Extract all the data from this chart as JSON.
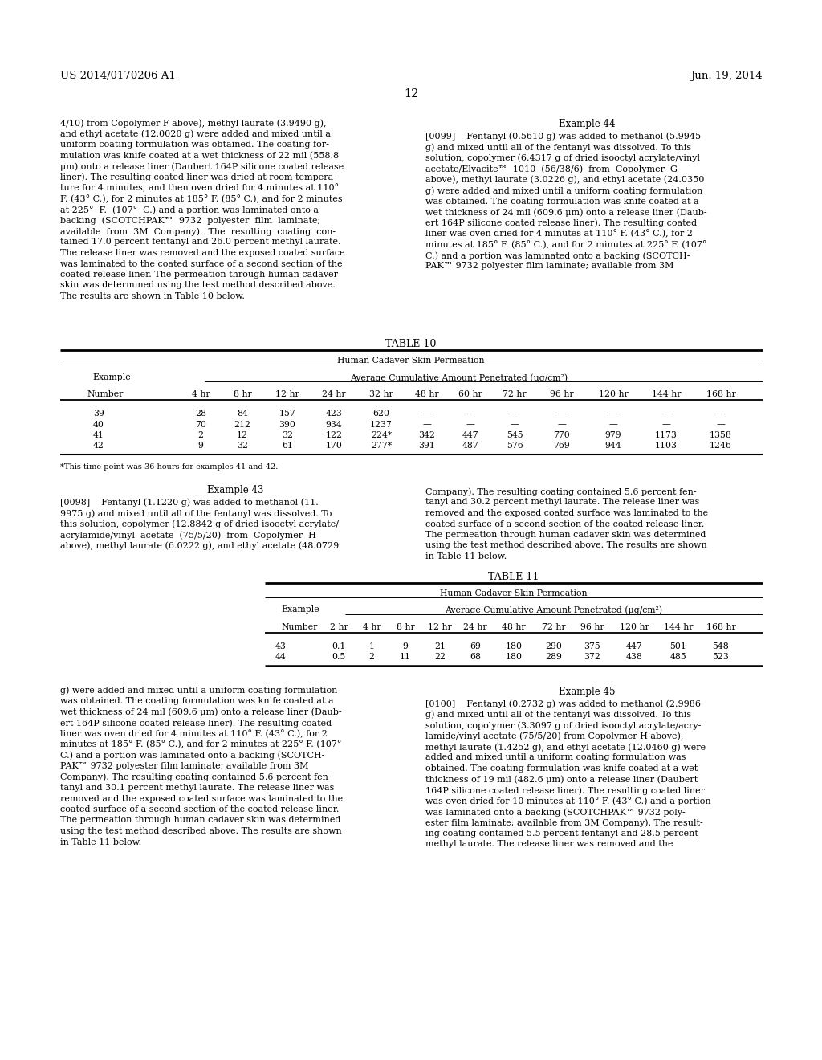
{
  "page_number": "12",
  "header_left": "US 2014/0170206 A1",
  "header_right": "Jun. 19, 2014",
  "background_color": "#ffffff",
  "left_col_top_para_lines": [
    "4/10) from Copolymer F above), methyl laurate (3.9490 g),",
    "and ethyl acetate (12.0020 g) were added and mixed until a",
    "uniform coating formulation was obtained. The coating for-",
    "mulation was knife coated at a wet thickness of 22 mil (558.8",
    "μm) onto a release liner (Daubert 164P silicone coated release",
    "liner). The resulting coated liner was dried at room tempera-",
    "ture for 4 minutes, and then oven dried for 4 minutes at 110°",
    "F. (43° C.), for 2 minutes at 185° F. (85° C.), and for 2 minutes",
    "at 225°  F.  (107°  C.) and a portion was laminated onto a",
    "backing  (SCOTCHPAK™  9732  polyester  film  laminate;",
    "available  from  3M  Company).  The  resulting  coating  con-",
    "tained 17.0 percent fentanyl and 26.0 percent methyl laurate.",
    "The release liner was removed and the exposed coated surface",
    "was laminated to the coated surface of a second section of the",
    "coated release liner. The permeation through human cadaver",
    "skin was determined using the test method described above.",
    "The results are shown in Table 10 below."
  ],
  "right_col_ex44_heading": "Example 44",
  "right_col_ex44_lines": [
    "[0099]    Fentanyl (0.5610 g) was added to methanol (5.9945",
    "g) and mixed until all of the fentanyl was dissolved. To this",
    "solution, copolymer (6.4317 g of dried isooctyl acrylate/vinyl",
    "acetate/Elvacite™  1010  (56/38/6)  from  Copolymer  G",
    "above), methyl laurate (3.0226 g), and ethyl acetate (24.0350",
    "g) were added and mixed until a uniform coating formulation",
    "was obtained. The coating formulation was knife coated at a",
    "wet thickness of 24 mil (609.6 μm) onto a release liner (Daub-",
    "ert 164P silicone coated release liner). The resulting coated",
    "liner was oven dried for 4 minutes at 110° F. (43° C.), for 2",
    "minutes at 185° F. (85° C.), and for 2 minutes at 225° F. (107°",
    "C.) and a portion was laminated onto a backing (SCOTCH-",
    "PAK™ 9732 polyester film laminate; available from 3M"
  ],
  "table10_title": "TABLE 10",
  "table10_header1": "Human Cadaver Skin Permeation",
  "table10_header2_left": "Example",
  "table10_header2_right": "Average Cumulative Amount Penetrated (μg/cm²)",
  "table10_col_headers": [
    "Number",
    "4 hr",
    "8 hr",
    "12 hr",
    "24 hr",
    "32 hr",
    "48 hr",
    "60 hr",
    "72 hr",
    "96 hr",
    "120 hr",
    "144 hr",
    "168 hr"
  ],
  "table10_data": [
    [
      "39",
      "28",
      "84",
      "157",
      "423",
      "620",
      "—",
      "—",
      "—",
      "—",
      "—",
      "—",
      "—"
    ],
    [
      "40",
      "70",
      "212",
      "390",
      "934",
      "1237",
      "—",
      "—",
      "—",
      "—",
      "—",
      "—",
      "—"
    ],
    [
      "41",
      "2",
      "12",
      "32",
      "122",
      "224*",
      "342",
      "447",
      "545",
      "770",
      "979",
      "1173",
      "1358"
    ],
    [
      "42",
      "9",
      "32",
      "61",
      "170",
      "277*",
      "391",
      "487",
      "576",
      "769",
      "944",
      "1103",
      "1246"
    ]
  ],
  "table10_footnote": "*This time point was 36 hours for examples 41 and 42.",
  "ex43_heading": "Example 43",
  "ex43_left_lines": [
    "[0098]    Fentanyl (1.1220 g) was added to methanol (11.",
    "9975 g) and mixed until all of the fentanyl was dissolved. To",
    "this solution, copolymer (12.8842 g of dried isooctyl acrylate/",
    "acrylamide/vinyl  acetate  (75/5/20)  from  Copolymer  H",
    "above), methyl laurate (6.0222 g), and ethyl acetate (48.0729"
  ],
  "ex44_cont_lines": [
    "Company). The resulting coating contained 5.6 percent fen-",
    "tanyl and 30.2 percent methyl laurate. The release liner was",
    "removed and the exposed coated surface was laminated to the",
    "coated surface of a second section of the coated release liner.",
    "The permeation through human cadaver skin was determined",
    "using the test method described above. The results are shown",
    "in Table 11 below."
  ],
  "table11_title": "TABLE 11",
  "table11_header1": "Human Cadaver Skin Permeation",
  "table11_header2_left": "Example",
  "table11_header2_right": "Average Cumulative Amount Penetrated (μg/cm²)",
  "table11_col_headers": [
    "Number",
    "2 hr",
    "4 hr",
    "8 hr",
    "12 hr",
    "24 hr",
    "48 hr",
    "72 hr",
    "96 hr",
    "120 hr",
    "144 hr",
    "168 hr"
  ],
  "table11_data": [
    [
      "43",
      "0.1",
      "1",
      "9",
      "21",
      "69",
      "180",
      "290",
      "375",
      "447",
      "501",
      "548"
    ],
    [
      "44",
      "0.5",
      "2",
      "11",
      "22",
      "68",
      "180",
      "289",
      "372",
      "438",
      "485",
      "523"
    ]
  ],
  "bottom_left_lines": [
    "g) were added and mixed until a uniform coating formulation",
    "was obtained. The coating formulation was knife coated at a",
    "wet thickness of 24 mil (609.6 μm) onto a release liner (Daub-",
    "ert 164P silicone coated release liner). The resulting coated",
    "liner was oven dried for 4 minutes at 110° F. (43° C.), for 2",
    "minutes at 185° F. (85° C.), and for 2 minutes at 225° F. (107°",
    "C.) and a portion was laminated onto a backing (SCOTCH-",
    "PAK™ 9732 polyester film laminate; available from 3M",
    "Company). The resulting coating contained 5.6 percent fen-",
    "tanyl and 30.1 percent methyl laurate. The release liner was",
    "removed and the exposed coated surface was laminated to the",
    "coated surface of a second section of the coated release liner.",
    "The permeation through human cadaver skin was determined",
    "using the test method described above. The results are shown",
    "in Table 11 below."
  ],
  "ex45_heading": "Example 45",
  "ex45_right_lines": [
    "[0100]    Fentanyl (0.2732 g) was added to methanol (2.9986",
    "g) and mixed until all of the fentanyl was dissolved. To this",
    "solution, copolymer (3.3097 g of dried isooctyl acrylate/acry-",
    "lamide/vinyl acetate (75/5/20) from Copolymer H above),",
    "methyl laurate (1.4252 g), and ethyl acetate (12.0460 g) were",
    "added and mixed until a uniform coating formulation was",
    "obtained. The coating formulation was knife coated at a wet",
    "thickness of 19 mil (482.6 μm) onto a release liner (Daubert",
    "164P silicone coated release liner). The resulting coated liner",
    "was oven dried for 10 minutes at 110° F. (43° C.) and a portion",
    "was laminated onto a backing (SCOTCHPAK™ 9732 poly-",
    "ester film laminate; available from 3M Company). The result-",
    "ing coating contained 5.5 percent fentanyl and 28.5 percent",
    "methyl laurate. The release liner was removed and the"
  ]
}
